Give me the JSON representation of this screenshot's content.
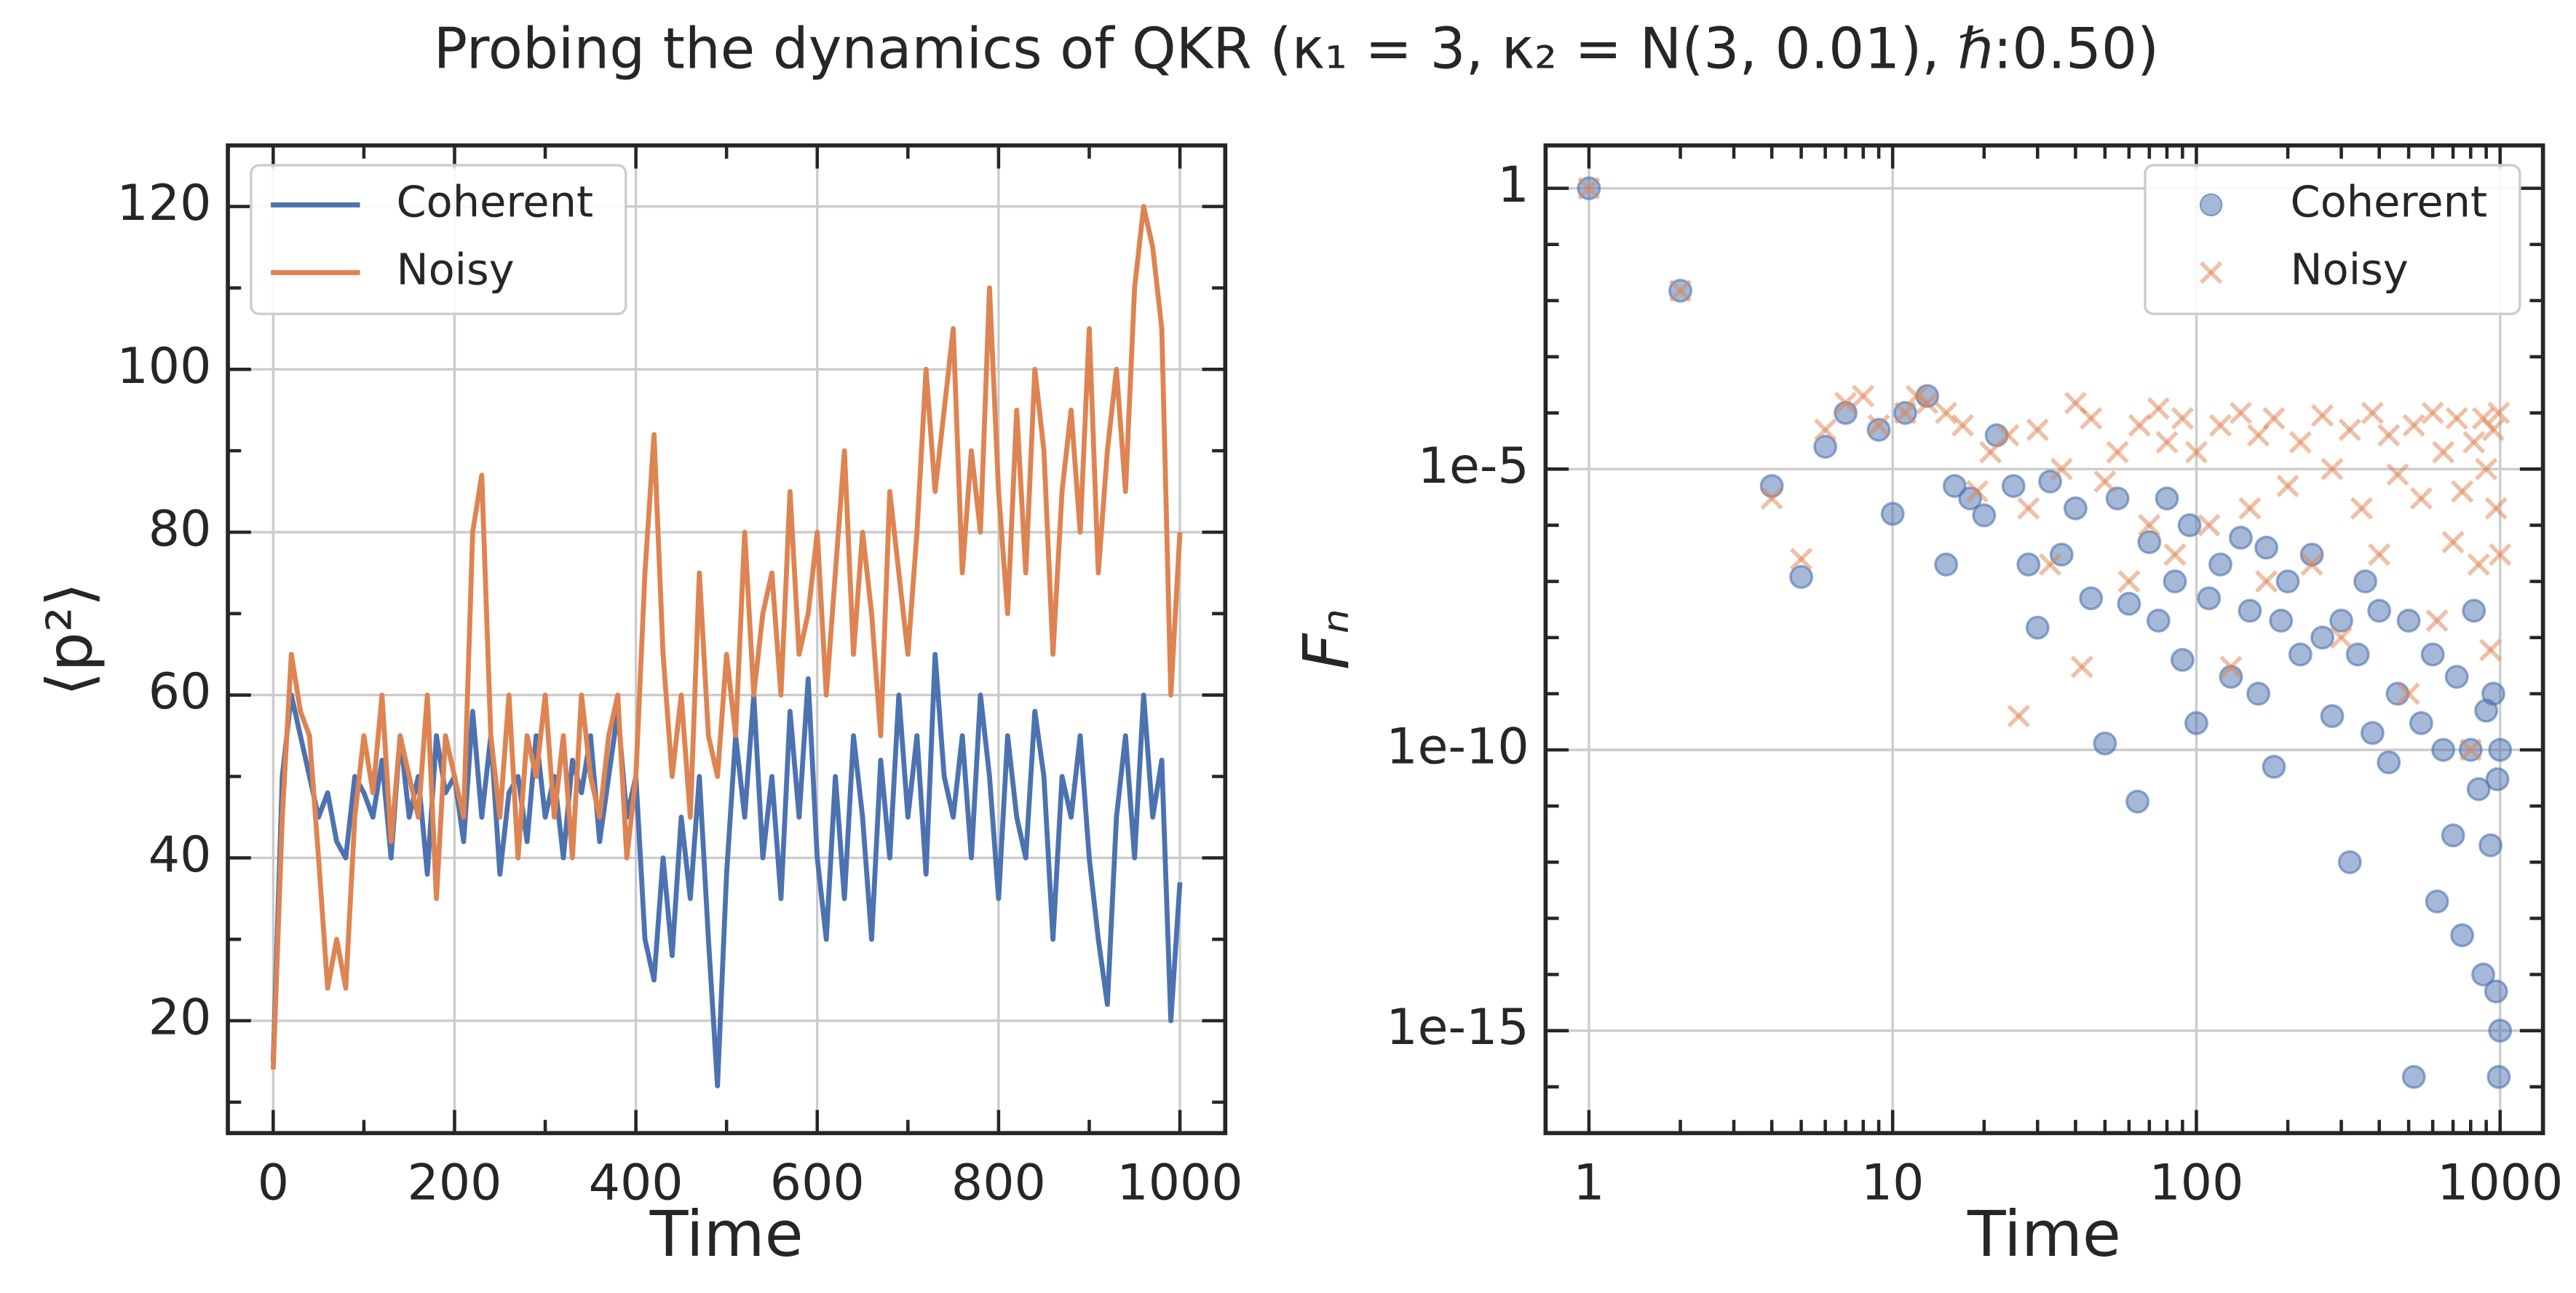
{
  "title": "Probing the dynamics of QKR (κ₁ = 3, κ₂ = N(3, 0.01), ℏ:0.50)",
  "chart_data": [
    {
      "type": "line",
      "xlabel": "Time",
      "ylabel": "⟨p²⟩",
      "x": [
        0,
        10,
        20,
        30,
        40,
        50,
        60,
        70,
        80,
        90,
        100,
        110,
        120,
        130,
        140,
        150,
        160,
        170,
        180,
        190,
        200,
        210,
        220,
        230,
        240,
        250,
        260,
        270,
        280,
        290,
        300,
        310,
        320,
        330,
        340,
        350,
        360,
        370,
        380,
        390,
        400,
        410,
        420,
        430,
        440,
        450,
        460,
        470,
        480,
        490,
        500,
        510,
        520,
        530,
        540,
        550,
        560,
        570,
        580,
        590,
        600,
        610,
        620,
        630,
        640,
        650,
        660,
        670,
        680,
        690,
        700,
        710,
        720,
        730,
        740,
        750,
        760,
        770,
        780,
        790,
        800,
        810,
        820,
        830,
        840,
        850,
        860,
        870,
        880,
        890,
        900,
        910,
        920,
        930,
        940,
        950,
        960,
        970,
        980,
        990,
        1000
      ],
      "series": [
        {
          "name": "Coherent",
          "color": "#4c72b0",
          "values": [
            15,
            50,
            60,
            55,
            50,
            45,
            48,
            42,
            40,
            50,
            48,
            45,
            52,
            40,
            55,
            45,
            50,
            38,
            55,
            48,
            50,
            42,
            58,
            45,
            55,
            38,
            48,
            50,
            42,
            55,
            45,
            50,
            40,
            52,
            48,
            55,
            42,
            50,
            58,
            45,
            50,
            30,
            25,
            40,
            28,
            45,
            35,
            50,
            30,
            12,
            38,
            55,
            45,
            60,
            40,
            50,
            35,
            58,
            45,
            62,
            40,
            30,
            50,
            35,
            55,
            45,
            30,
            52,
            40,
            60,
            45,
            55,
            38,
            65,
            50,
            45,
            55,
            40,
            60,
            50,
            35,
            55,
            45,
            40,
            58,
            50,
            30,
            50,
            45,
            55,
            40,
            30,
            22,
            45,
            55,
            40,
            60,
            45,
            52,
            20,
            37
          ]
        },
        {
          "name": "Noisy",
          "color": "#dd8452",
          "values": [
            14,
            45,
            65,
            58,
            55,
            40,
            24,
            30,
            24,
            45,
            55,
            48,
            60,
            42,
            55,
            50,
            45,
            60,
            35,
            55,
            50,
            45,
            80,
            87,
            55,
            45,
            60,
            40,
            55,
            50,
            60,
            45,
            55,
            40,
            60,
            50,
            45,
            55,
            60,
            40,
            50,
            75,
            92,
            65,
            50,
            60,
            45,
            75,
            55,
            50,
            65,
            55,
            80,
            60,
            70,
            75,
            60,
            85,
            65,
            70,
            80,
            60,
            75,
            90,
            65,
            80,
            70,
            55,
            85,
            75,
            65,
            80,
            100,
            85,
            95,
            105,
            75,
            90,
            80,
            110,
            85,
            70,
            95,
            75,
            100,
            90,
            65,
            85,
            95,
            80,
            105,
            75,
            90,
            100,
            85,
            110,
            120,
            115,
            105,
            60,
            80
          ]
        }
      ],
      "xlim": [
        -50,
        1050
      ],
      "ylim": [
        6.2,
        127.5
      ],
      "xticks": [
        0,
        200,
        400,
        600,
        800,
        1000
      ],
      "yticks": [
        20,
        40,
        60,
        80,
        100,
        120
      ],
      "xminorticks": [
        100,
        300,
        500,
        700,
        900
      ],
      "yminorticks": [
        10,
        30,
        50,
        70,
        90,
        110
      ],
      "grid": true,
      "legend": "upper left"
    },
    {
      "type": "scatter",
      "xlabel": "Time",
      "ylabel": "Fₙ",
      "xscale": "log",
      "yscale": "log",
      "series": [
        {
          "name": "Coherent",
          "color": "#4c72b0",
          "marker": "o",
          "x": [
            1,
            2,
            4,
            5,
            6,
            7,
            9,
            10,
            11,
            13,
            15,
            16,
            18,
            20,
            22,
            25,
            28,
            30,
            33,
            36,
            40,
            45,
            50,
            55,
            60,
            64,
            70,
            75,
            80,
            85,
            90,
            95,
            100,
            110,
            120,
            130,
            140,
            150,
            160,
            170,
            180,
            190,
            200,
            220,
            240,
            260,
            280,
            300,
            320,
            340,
            360,
            380,
            400,
            430,
            460,
            500,
            520,
            550,
            600,
            620,
            650,
            700,
            720,
            750,
            800,
            820,
            850,
            880,
            900,
            930,
            950,
            970,
            980,
            990,
            1000,
            1000
          ],
          "values": [
            1,
            0.015,
            5e-06,
            1.2e-07,
            2.5e-05,
            0.0001,
            5e-05,
            1.6e-06,
            0.0001,
            0.0002,
            2e-07,
            5e-06,
            3e-06,
            1.5e-06,
            4e-05,
            5e-06,
            2e-07,
            1.5e-08,
            6e-06,
            3e-07,
            2e-06,
            5e-08,
            1.3e-10,
            3e-06,
            4e-08,
            1.2e-11,
            5e-07,
            2e-08,
            3e-06,
            1e-07,
            4e-09,
            1e-06,
            3e-10,
            5e-08,
            2e-07,
            2e-09,
            6e-07,
            3e-08,
            1e-09,
            4e-07,
            5e-11,
            2e-08,
            1e-07,
            5e-09,
            3e-07,
            1e-08,
            4e-10,
            2e-08,
            1e-12,
            5e-09,
            1e-07,
            2e-10,
            3e-08,
            6e-11,
            1e-09,
            2e-08,
            1.5e-16,
            3e-10,
            5e-09,
            2e-13,
            1e-10,
            3e-12,
            2e-09,
            5e-14,
            1e-10,
            3e-08,
            2e-11,
            1e-14,
            5e-10,
            2e-12,
            1e-09,
            5e-15,
            3e-11,
            1.5e-16,
            1e-10,
            1e-15
          ]
        },
        {
          "name": "Noisy",
          "color": "#dd8452",
          "marker": "x",
          "x": [
            1,
            2,
            4,
            5,
            6,
            7,
            8,
            9,
            11,
            12,
            13,
            15,
            17,
            19,
            21,
            24,
            26,
            28,
            30,
            33,
            36,
            40,
            42,
            45,
            50,
            55,
            60,
            65,
            70,
            75,
            80,
            85,
            90,
            100,
            110,
            120,
            130,
            140,
            150,
            160,
            170,
            180,
            200,
            220,
            240,
            260,
            280,
            300,
            320,
            350,
            380,
            400,
            430,
            460,
            500,
            520,
            550,
            600,
            620,
            650,
            700,
            720,
            750,
            800,
            820,
            850,
            880,
            900,
            930,
            950,
            970,
            990,
            1000
          ],
          "values": [
            1,
            0.015,
            3e-06,
            2.5e-07,
            5e-05,
            0.00015,
            0.0002,
            6e-05,
            0.0001,
            0.0002,
            0.00015,
            0.0001,
            6e-05,
            4e-06,
            2e-05,
            4e-05,
            4e-10,
            2e-06,
            5e-05,
            2e-07,
            1e-05,
            0.00015,
            3e-09,
            8e-05,
            6e-06,
            2e-05,
            1e-07,
            6e-05,
            1e-06,
            0.00012,
            3e-05,
            3e-07,
            8e-05,
            2e-05,
            1e-06,
            6e-05,
            3e-09,
            0.0001,
            2e-06,
            4e-05,
            1e-07,
            8e-05,
            5e-06,
            3e-05,
            2e-07,
            9e-05,
            1e-05,
            1e-08,
            5e-05,
            2e-06,
            0.0001,
            3e-07,
            4e-05,
            8e-06,
            1e-09,
            6e-05,
            3e-06,
            0.0001,
            2e-08,
            2e-05,
            5e-07,
            8e-05,
            4e-06,
            1e-10,
            3e-05,
            2e-07,
            8e-05,
            1e-05,
            6e-09,
            5e-05,
            2e-06,
            0.0001,
            3e-07
          ]
        }
      ],
      "xlim": [
        0.72,
        1384
      ],
      "ylim": [
        1.5e-17,
        5.8
      ],
      "xticks": [
        1,
        10,
        100,
        1000
      ],
      "yticks": [
        1,
        {
          "value": 1e-05,
          "label": "1e-5"
        },
        {
          "value": 1e-10,
          "label": "1e-10"
        },
        {
          "value": 1e-15,
          "label": "1e-15"
        }
      ],
      "xminorticks": [
        2,
        3,
        4,
        5,
        6,
        7,
        8,
        9,
        20,
        30,
        40,
        50,
        60,
        70,
        80,
        90,
        200,
        300,
        400,
        500,
        600,
        700,
        800,
        900
      ],
      "yminorticks": [
        0.1,
        0.01,
        0.001,
        0.0001,
        1e-06,
        1e-07,
        1e-08,
        1e-09,
        1e-11,
        1e-12,
        1e-13,
        1e-14,
        1e-16
      ],
      "grid": true,
      "legend": "upper right"
    }
  ]
}
